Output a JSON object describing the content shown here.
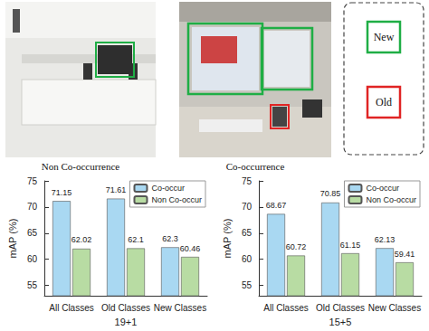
{
  "figure": {
    "images": [
      {
        "caption": "Non Co-occurrence"
      },
      {
        "caption": "Co-occurrence"
      }
    ],
    "box_legend": [
      {
        "label": "New",
        "color": "#1fae45"
      },
      {
        "label": "Old",
        "color": "#e02424"
      }
    ]
  },
  "chart_data": [
    {
      "type": "bar",
      "xlabel": "19+1",
      "ylabel": "mAP (%)",
      "categories": [
        "All Classes",
        "Old Classes",
        "New Classes"
      ],
      "series": [
        {
          "name": "Co-occur",
          "color": "#a9d8f2",
          "values": [
            71.15,
            71.61,
            62.3
          ]
        },
        {
          "name": "Non Co-occur",
          "color": "#b8dca3",
          "values": [
            62.02,
            62.1,
            60.46
          ]
        }
      ],
      "ylim": [
        53,
        75
      ],
      "yticks": [
        55,
        60,
        65,
        70,
        75
      ],
      "legend": "upper right",
      "data_labels": true
    },
    {
      "type": "bar",
      "xlabel": "15+5",
      "ylabel": "mAP (%)",
      "categories": [
        "All Classes",
        "Old Classes",
        "New Classes"
      ],
      "series": [
        {
          "name": "Co-occur",
          "color": "#a9d8f2",
          "values": [
            68.67,
            70.85,
            62.13
          ]
        },
        {
          "name": "Non Co-occur",
          "color": "#b8dca3",
          "values": [
            60.72,
            61.15,
            59.41
          ]
        }
      ],
      "ylim": [
        53,
        75
      ],
      "yticks": [
        55,
        60,
        65,
        70,
        75
      ],
      "legend": "upper right",
      "data_labels": true
    }
  ]
}
